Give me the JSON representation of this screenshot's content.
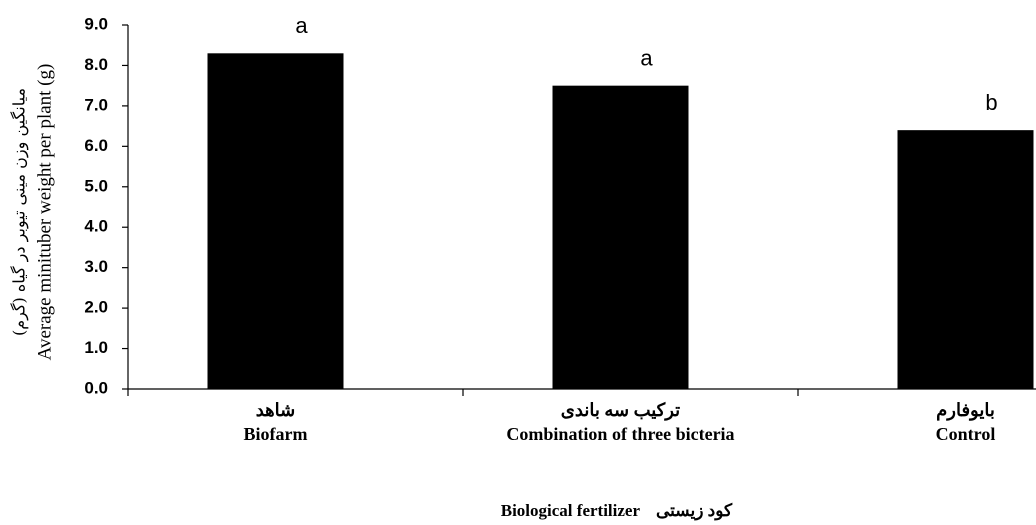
{
  "chart_data": {
    "type": "bar",
    "y_label": "Average minituber weight per plant (g)",
    "y_label_fa": "میانگین وزن مینی تیوبر در گیاه (گرم)",
    "x_label": "Biological fertilizer",
    "x_label_fa": "کود زیستی",
    "categories": [
      "Biofarm",
      "Combination of three bicteria",
      "Control"
    ],
    "categories_fa": [
      "شاهد",
      "ترکیب سه باندی",
      "بایوفارم"
    ],
    "values": [
      8.3,
      7.5,
      6.4
    ],
    "annotations": [
      "a",
      "a",
      "b"
    ],
    "color": "#000000",
    "ylim": [
      0,
      9
    ],
    "yticks": [
      {
        "value": 0,
        "label": "0.0"
      },
      {
        "value": 1,
        "label": "1.0"
      },
      {
        "value": 2,
        "label": "2.0"
      },
      {
        "value": 3,
        "label": "3.0"
      },
      {
        "value": 4,
        "label": "4.0"
      },
      {
        "value": 5,
        "label": "5.0"
      },
      {
        "value": 6,
        "label": "6.0"
      },
      {
        "value": 7,
        "label": "7.0"
      },
      {
        "value": 8,
        "label": "8.0"
      },
      {
        "value": 9,
        "label": "9.0"
      }
    ],
    "grid": false
  }
}
